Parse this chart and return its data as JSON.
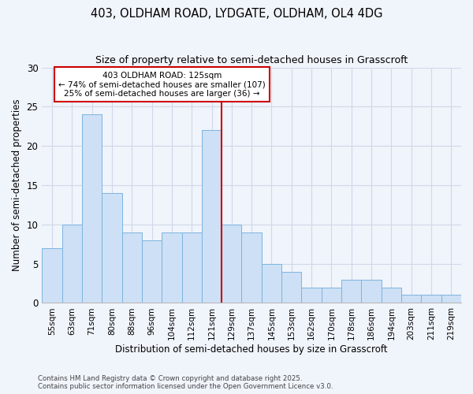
{
  "title_line1": "403, OLDHAM ROAD, LYDGATE, OLDHAM, OL4 4DG",
  "title_line2": "Size of property relative to semi-detached houses in Grasscroft",
  "xlabel": "Distribution of semi-detached houses by size in Grasscroft",
  "ylabel": "Number of semi-detached properties",
  "categories": [
    "55sqm",
    "63sqm",
    "71sqm",
    "80sqm",
    "88sqm",
    "96sqm",
    "104sqm",
    "112sqm",
    "121sqm",
    "129sqm",
    "137sqm",
    "145sqm",
    "153sqm",
    "162sqm",
    "170sqm",
    "178sqm",
    "186sqm",
    "194sqm",
    "203sqm",
    "211sqm",
    "219sqm"
  ],
  "values": [
    7,
    10,
    24,
    14,
    9,
    8,
    9,
    9,
    22,
    10,
    9,
    5,
    4,
    2,
    2,
    3,
    3,
    2,
    1,
    1,
    1
  ],
  "bar_color": "#cde0f5",
  "bar_edge_color": "#7db4e0",
  "pct_smaller": 74,
  "n_smaller": 107,
  "pct_larger": 25,
  "n_larger": 36,
  "annotation_box_color": "#ffffff",
  "annotation_box_edge": "#cc0000",
  "vline_color": "#cc0000",
  "ylim": [
    0,
    30
  ],
  "yticks": [
    0,
    5,
    10,
    15,
    20,
    25,
    30
  ],
  "grid_color": "#d0d8e8",
  "bg_color": "#f0f4fb",
  "footnote1": "Contains HM Land Registry data © Crown copyright and database right 2025.",
  "footnote2": "Contains public sector information licensed under the Open Government Licence v3.0."
}
